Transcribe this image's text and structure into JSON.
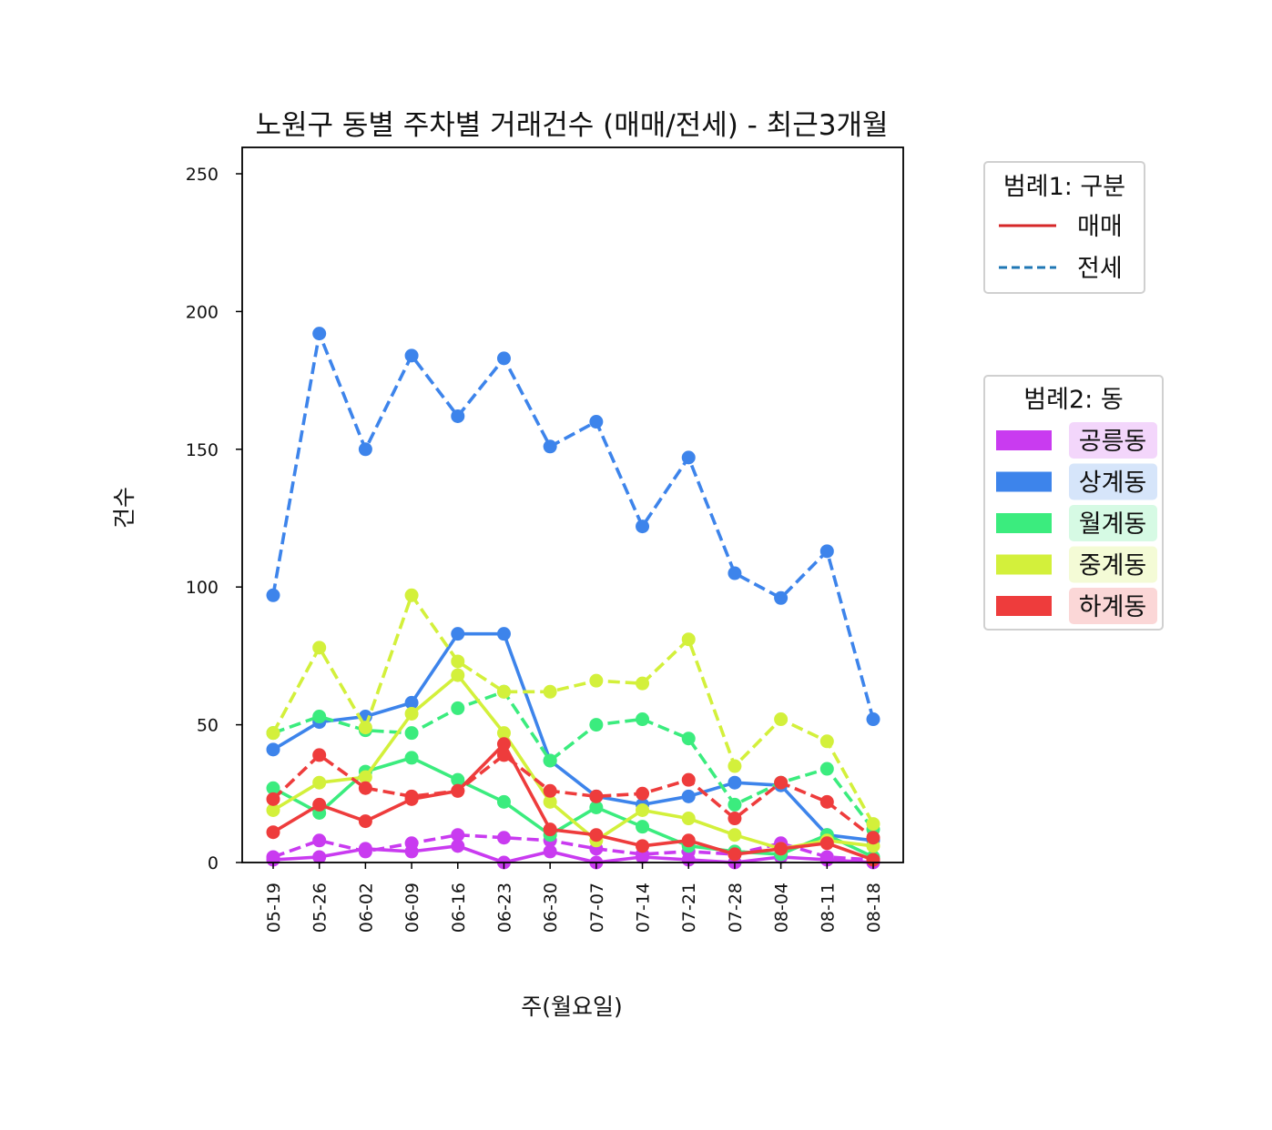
{
  "chart_data": {
    "type": "line",
    "title": "노원구 동별 주차별 거래건수 (매매/전세) - 최근3개월",
    "xlabel": "주(월요일)",
    "ylabel": "건수",
    "ylim": [
      0,
      260
    ],
    "yticks": [
      0,
      50,
      100,
      150,
      200,
      250
    ],
    "grid": false,
    "categories": [
      "05-19",
      "05-26",
      "06-02",
      "06-09",
      "06-16",
      "06-23",
      "06-30",
      "07-07",
      "07-14",
      "07-21",
      "07-28",
      "08-04",
      "08-11",
      "08-18"
    ],
    "legend1": {
      "title": "범례1: 구분",
      "position": "upper right outside",
      "items": [
        {
          "label": "매매",
          "style": "solid",
          "color": "#d62728"
        },
        {
          "label": "전세",
          "style": "dashed",
          "color": "#1f77b4"
        }
      ]
    },
    "legend2": {
      "title": "범례2: 동",
      "position": "right outside",
      "items": [
        {
          "label": "공릉동",
          "color": "#c93bf0",
          "bg": "#f3d6fb"
        },
        {
          "label": "상계동",
          "color": "#3d84eb",
          "bg": "#d6e5fa"
        },
        {
          "label": "월계동",
          "color": "#3bec7e",
          "bg": "#d6fae4"
        },
        {
          "label": "중계동",
          "color": "#d3f03b",
          "bg": "#f4fbd6"
        },
        {
          "label": "하계동",
          "color": "#ee3c3c",
          "bg": "#fbd7d7"
        }
      ]
    },
    "series": [
      {
        "name": "공릉동 매매",
        "dong": "공릉동",
        "kind": "매매",
        "color": "#c93bf0",
        "style": "solid",
        "values": [
          1,
          2,
          5,
          4,
          6,
          0,
          4,
          0,
          2,
          1,
          0,
          2,
          1,
          0
        ]
      },
      {
        "name": "공릉동 전세",
        "dong": "공릉동",
        "kind": "전세",
        "color": "#c93bf0",
        "style": "dashed",
        "values": [
          2,
          8,
          4,
          7,
          10,
          9,
          8,
          5,
          3,
          4,
          3,
          7,
          2,
          1
        ]
      },
      {
        "name": "상계동 매매",
        "dong": "상계동",
        "kind": "매매",
        "color": "#3d84eb",
        "style": "solid",
        "values": [
          41,
          51,
          53,
          58,
          83,
          83,
          37,
          24,
          21,
          24,
          29,
          28,
          10,
          8
        ]
      },
      {
        "name": "상계동 전세",
        "dong": "상계동",
        "kind": "전세",
        "color": "#3d84eb",
        "style": "dashed",
        "values": [
          97,
          192,
          150,
          184,
          162,
          183,
          151,
          160,
          122,
          147,
          105,
          96,
          113,
          52
        ]
      },
      {
        "name": "월계동 매매",
        "dong": "월계동",
        "kind": "매매",
        "color": "#3bec7e",
        "style": "solid",
        "values": [
          27,
          18,
          33,
          38,
          30,
          22,
          10,
          20,
          13,
          6,
          4,
          3,
          10,
          2
        ]
      },
      {
        "name": "월계동 전세",
        "dong": "월계동",
        "kind": "전세",
        "color": "#3bec7e",
        "style": "dashed",
        "values": [
          47,
          53,
          48,
          47,
          56,
          62,
          37,
          50,
          52,
          45,
          21,
          29,
          34,
          12
        ]
      },
      {
        "name": "중계동 매매",
        "dong": "중계동",
        "kind": "매매",
        "color": "#d3f03b",
        "style": "solid",
        "values": [
          19,
          29,
          31,
          54,
          68,
          47,
          22,
          8,
          19,
          16,
          10,
          5,
          8,
          6
        ]
      },
      {
        "name": "중계동 전세",
        "dong": "중계동",
        "kind": "전세",
        "color": "#d3f03b",
        "style": "dashed",
        "values": [
          47,
          78,
          49,
          97,
          73,
          62,
          62,
          66,
          65,
          81,
          35,
          52,
          44,
          14
        ]
      },
      {
        "name": "하계동 매매",
        "dong": "하계동",
        "kind": "매매",
        "color": "#ee3c3c",
        "style": "solid",
        "values": [
          11,
          21,
          15,
          23,
          26,
          43,
          12,
          10,
          6,
          8,
          3,
          5,
          7,
          1
        ]
      },
      {
        "name": "하계동 전세",
        "dong": "하계동",
        "kind": "전세",
        "color": "#ee3c3c",
        "style": "dashed",
        "values": [
          23,
          39,
          27,
          24,
          26,
          39,
          26,
          24,
          25,
          30,
          16,
          29,
          22,
          9
        ]
      }
    ]
  }
}
